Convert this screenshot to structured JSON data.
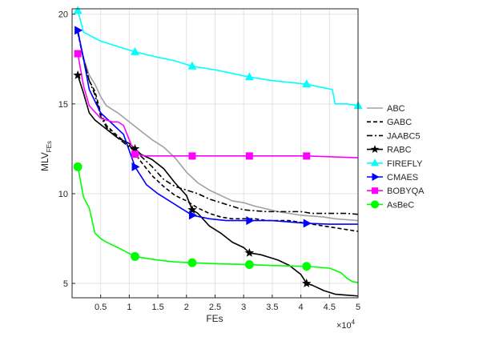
{
  "chart_data": {
    "type": "line",
    "xlabel": "FEs",
    "ylabel": "MLV",
    "ylabel_subscript": "FEs",
    "x_exponent_label": "×10",
    "x_exponent_power": "4",
    "xlim": [
      0,
      50000
    ],
    "ylim": [
      4.2,
      20.3
    ],
    "grid": true,
    "legend_position": "right",
    "x_ticks": [
      {
        "value": 5000,
        "label": "0.5"
      },
      {
        "value": 10000,
        "label": "1"
      },
      {
        "value": 15000,
        "label": "1.5"
      },
      {
        "value": 20000,
        "label": "2"
      },
      {
        "value": 25000,
        "label": "2.5"
      },
      {
        "value": 30000,
        "label": "3"
      },
      {
        "value": 35000,
        "label": "3.5"
      },
      {
        "value": 40000,
        "label": "4"
      },
      {
        "value": 45000,
        "label": "4.5"
      },
      {
        "value": 50000,
        "label": "5"
      }
    ],
    "y_ticks": [
      {
        "value": 5,
        "label": "5"
      },
      {
        "value": 10,
        "label": "10"
      },
      {
        "value": 15,
        "label": "15"
      },
      {
        "value": 20,
        "label": "20"
      }
    ],
    "series": [
      {
        "name": "ABC",
        "color": "#a0a0a0",
        "dash": "",
        "marker": "none",
        "x": [
          1000,
          2000,
          3000,
          4000,
          5000,
          6000,
          8000,
          10000,
          12000,
          14000,
          16000,
          18000,
          20000,
          22000,
          24000,
          26000,
          28000,
          30000,
          32000,
          34000,
          36000,
          38000,
          40000,
          42000,
          44000,
          46000,
          48000,
          50000
        ],
        "y": [
          19.0,
          17.6,
          16.6,
          16.1,
          15.4,
          14.9,
          14.5,
          14.0,
          13.5,
          13.0,
          12.6,
          12.0,
          11.2,
          10.6,
          10.2,
          9.9,
          9.6,
          9.5,
          9.3,
          9.15,
          9.0,
          8.9,
          8.8,
          8.75,
          8.7,
          8.6,
          8.55,
          8.5
        ]
      },
      {
        "name": "GABC",
        "color": "#000000",
        "dash": "5,3",
        "marker": "none",
        "x": [
          1000,
          2000,
          3000,
          4000,
          5000,
          6000,
          8000,
          10000,
          12000,
          14000,
          16000,
          18000,
          20000,
          22000,
          24000,
          26000,
          28000,
          30000,
          32000,
          34000,
          36000,
          38000,
          40000,
          42000,
          44000,
          46000,
          48000,
          50000
        ],
        "y": [
          19.0,
          17.5,
          16.3,
          15.7,
          14.5,
          13.8,
          13.2,
          12.7,
          11.8,
          11.0,
          10.4,
          9.9,
          9.6,
          9.2,
          8.9,
          8.7,
          8.6,
          8.6,
          8.6,
          8.5,
          8.5,
          8.5,
          8.4,
          8.3,
          8.2,
          8.1,
          8.0,
          7.9
        ]
      },
      {
        "name": "JAABC5",
        "color": "#000000",
        "dash": "7,3,2,3",
        "marker": "none",
        "x": [
          1000,
          2000,
          3000,
          4000,
          5000,
          6000,
          8000,
          10000,
          12000,
          14000,
          16000,
          18000,
          20000,
          22000,
          24000,
          26000,
          28000,
          30000,
          32000,
          34000,
          36000,
          38000,
          40000,
          42000,
          44000,
          46000,
          48000,
          50000
        ],
        "y": [
          19.0,
          17.5,
          16.3,
          15.5,
          14.3,
          13.7,
          13.1,
          12.6,
          12.1,
          11.5,
          10.8,
          10.4,
          10.2,
          10.0,
          9.7,
          9.5,
          9.3,
          9.1,
          9.05,
          9.0,
          9.0,
          9.0,
          9.0,
          8.9,
          8.9,
          8.9,
          8.9,
          8.85
        ]
      },
      {
        "name": "RABC",
        "color": "#000000",
        "dash": "",
        "marker": "star",
        "x": [
          1000,
          2000,
          3000,
          4000,
          6000,
          8000,
          10000,
          12000,
          14000,
          16000,
          18000,
          20000,
          21000,
          22000,
          24000,
          26000,
          28000,
          30000,
          31000,
          33000,
          35000,
          36000,
          38000,
          40000,
          41000,
          42000,
          44000,
          46000,
          48000,
          50000
        ],
        "y": [
          16.6,
          15.6,
          14.5,
          14.1,
          13.6,
          13.1,
          12.8,
          12.2,
          11.9,
          11.4,
          10.6,
          9.9,
          9.1,
          8.9,
          8.2,
          7.8,
          7.3,
          7.0,
          6.7,
          6.6,
          6.4,
          6.3,
          6.0,
          5.5,
          5.0,
          4.9,
          4.6,
          4.4,
          4.35,
          4.3
        ],
        "markers_x": [
          1000,
          11000,
          21000,
          31000,
          41000
        ]
      },
      {
        "name": "FIREFLY",
        "color": "#00ffff",
        "dash": "",
        "marker": "triangle-up",
        "x": [
          1000,
          2000,
          5000,
          8000,
          11000,
          15000,
          18000,
          21000,
          25000,
          28000,
          31000,
          35000,
          38000,
          41000,
          44000,
          45500,
          46000,
          48000,
          50000
        ],
        "y": [
          20.2,
          19.0,
          18.5,
          18.2,
          17.9,
          17.6,
          17.4,
          17.1,
          16.9,
          16.7,
          16.5,
          16.3,
          16.2,
          16.1,
          15.9,
          15.8,
          15.0,
          15.0,
          14.9
        ],
        "markers_x": [
          1000,
          11000,
          21000,
          31000,
          41000,
          50000
        ]
      },
      {
        "name": "CMAES",
        "color": "#0000ff",
        "dash": "",
        "marker": "triangle-right",
        "x": [
          1000,
          2000,
          3000,
          5000,
          7000,
          9000,
          11000,
          13000,
          15000,
          17000,
          19000,
          21000,
          24000,
          27000,
          31000,
          35000,
          41000,
          45000,
          50000
        ],
        "y": [
          19.1,
          17.5,
          15.8,
          14.5,
          13.9,
          13.3,
          11.5,
          10.5,
          10.0,
          9.6,
          9.2,
          8.8,
          8.6,
          8.5,
          8.5,
          8.5,
          8.35,
          8.3,
          8.3
        ],
        "markers_x": [
          1000,
          11000,
          21000,
          31000,
          41000
        ]
      },
      {
        "name": "BOBYQA",
        "color": "#ff00ff",
        "dash": "",
        "marker": "square",
        "x": [
          1000,
          2000,
          3000,
          5000,
          7000,
          8000,
          9000,
          10000,
          11000,
          13000,
          15000,
          21000,
          31000,
          41000,
          50000
        ],
        "y": [
          17.8,
          16.0,
          14.9,
          14.2,
          14.0,
          14.0,
          13.8,
          13.0,
          12.2,
          12.1,
          12.1,
          12.1,
          12.1,
          12.1,
          12.0
        ],
        "markers_x": [
          1000,
          11000,
          21000,
          31000,
          41000
        ]
      },
      {
        "name": "AsBeC",
        "color": "#00ff00",
        "dash": "",
        "marker": "circle",
        "x": [
          1000,
          2000,
          3000,
          4000,
          5000,
          6000,
          8000,
          11000,
          13000,
          15000,
          18000,
          21000,
          25000,
          31000,
          35000,
          41000,
          43000,
          45000,
          47000,
          48000,
          49000,
          50000
        ],
        "y": [
          11.5,
          9.8,
          9.2,
          7.8,
          7.5,
          7.3,
          7.0,
          6.5,
          6.4,
          6.3,
          6.2,
          6.15,
          6.1,
          6.05,
          6.0,
          5.95,
          5.9,
          5.85,
          5.6,
          5.3,
          5.1,
          5.05
        ],
        "markers_x": [
          1000,
          11000,
          21000,
          31000,
          41000
        ]
      }
    ]
  }
}
